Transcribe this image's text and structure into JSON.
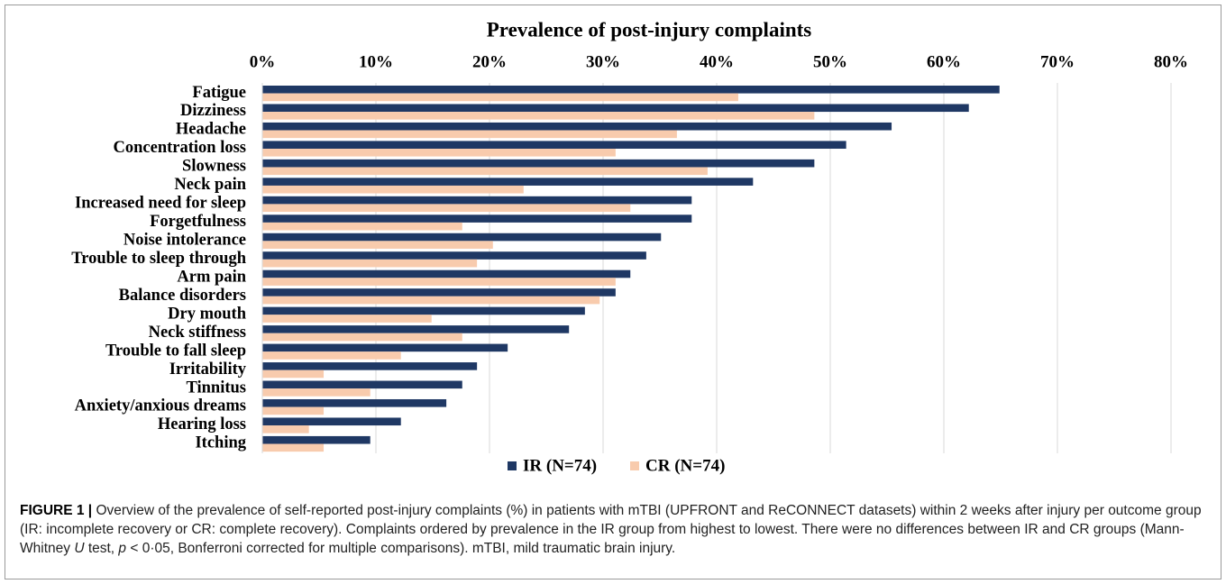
{
  "chart_data": {
    "type": "barh",
    "title": "Prevalence of post-injury complaints",
    "categories": [
      "Fatigue",
      "Dizziness",
      "Headache",
      "Concentration loss",
      "Slowness",
      "Neck pain",
      "Increased need for sleep",
      "Forgetfulness",
      "Noise intolerance",
      "Trouble to sleep through",
      "Arm pain",
      "Balance disorders",
      "Dry mouth",
      "Neck stiffness",
      "Trouble to fall sleep",
      "Irritability",
      "Tinnitus",
      "Anxiety/anxious dreams",
      "Hearing loss",
      "Itching"
    ],
    "series": [
      {
        "name": "IR (N=74)",
        "color": "#1f3864",
        "values": [
          64.9,
          62.2,
          55.4,
          51.4,
          48.6,
          43.2,
          37.8,
          37.8,
          35.1,
          33.8,
          32.4,
          31.1,
          28.4,
          27.0,
          21.6,
          18.9,
          17.6,
          16.2,
          12.2,
          9.5
        ]
      },
      {
        "name": "CR (N=74)",
        "color": "#f8cbad",
        "values": [
          41.9,
          48.6,
          36.5,
          31.1,
          39.2,
          23.0,
          32.4,
          17.6,
          20.3,
          18.9,
          31.1,
          29.7,
          14.9,
          17.6,
          12.2,
          5.4,
          9.5,
          5.4,
          4.1,
          5.4
        ]
      }
    ],
    "xlim": [
      0,
      80
    ],
    "xticks": [
      {
        "value": 0,
        "label": "0%"
      },
      {
        "value": 10,
        "label": "10%"
      },
      {
        "value": 20,
        "label": "20%"
      },
      {
        "value": 30,
        "label": "30%"
      },
      {
        "value": 40,
        "label": "40%"
      },
      {
        "value": 50,
        "label": "50%"
      },
      {
        "value": 60,
        "label": "60%"
      },
      {
        "value": 70,
        "label": "70%"
      },
      {
        "value": 80,
        "label": "80%"
      }
    ],
    "grid": true,
    "legend": "bottom"
  },
  "caption": {
    "label": "FIGURE 1 |",
    "text": [
      "Overview of the prevalence of self-reported post-injury complaints (%) in patients with mTBI (UPFRONT and ReCONNECT datasets) within 2 weeks after injury per outcome group (IR: incomplete recovery or CR: complete recovery). Complaints ordered by prevalence in the IR group from highest to lowest. There were no differences between IR and CR groups (Mann-Whitney ",
      "U",
      " test, ",
      "p",
      " < 0·05, Bonferroni corrected for multiple comparisons). mTBI, mild traumatic brain injury."
    ]
  }
}
